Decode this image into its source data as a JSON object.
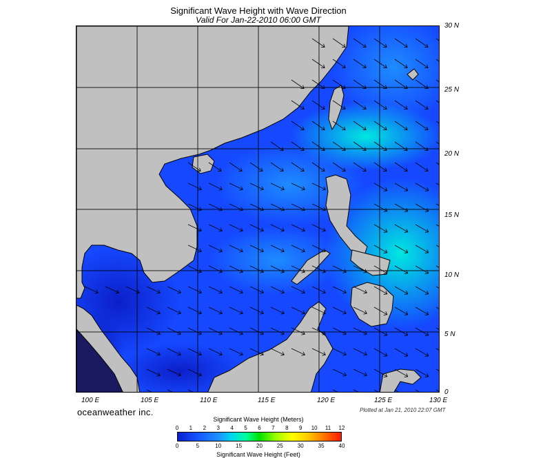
{
  "title": "Significant Wave Height with Wave Direction",
  "subtitle": "Valid For Jan-22-2010 06:00 GMT",
  "lat_labels": [
    "30 N",
    "25 N",
    "20 N",
    "15 N",
    "10 N",
    "5 N",
    "0"
  ],
  "lon_labels": [
    "100 E",
    "105 E",
    "110 E",
    "115 E",
    "120 E",
    "125 E",
    "130 E"
  ],
  "brand": "oceanweather inc.",
  "plotted": "Plotted at Jan 21, 2010 22:07 GMT",
  "colorbar": {
    "meters_label": "Significant Wave Height (Meters)",
    "meters_ticks": [
      "0",
      "1",
      "2",
      "3",
      "4",
      "5",
      "6",
      "7",
      "8",
      "9",
      "10",
      "11",
      "12"
    ],
    "feet_label": "Significant Wave Height (Feet)",
    "feet_ticks": [
      "0",
      "5",
      "10",
      "15",
      "20",
      "25",
      "30",
      "35",
      "40"
    ]
  },
  "colors": {
    "land": "#c0c0c0",
    "low": "#1040ff",
    "mid": "#1e90ff",
    "high": "#00e6e6"
  }
}
